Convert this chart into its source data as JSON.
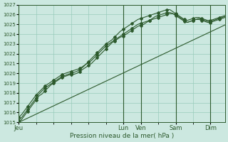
{
  "background_color": "#cce8e0",
  "grid_color": "#99ccbb",
  "line_color": "#2d5a2d",
  "xlabel": "Pression niveau de la mer( hPa )",
  "ylim": [
    1015,
    1027
  ],
  "ytick_step": 1,
  "x_day_labels": [
    "Jeu",
    "Lun",
    "Ven",
    "Sam",
    "Dim"
  ],
  "x_day_positions": [
    0,
    36,
    42,
    54,
    66
  ],
  "total_points": 72,
  "series1": [
    1015.0,
    1015.3,
    1015.7,
    1016.1,
    1016.5,
    1016.9,
    1017.3,
    1017.7,
    1017.9,
    1018.2,
    1018.5,
    1018.8,
    1019.0,
    1019.2,
    1019.4,
    1019.6,
    1019.7,
    1019.8,
    1019.9,
    1019.9,
    1020.0,
    1020.2,
    1020.4,
    1020.6,
    1020.8,
    1021.0,
    1021.3,
    1021.6,
    1021.9,
    1022.2,
    1022.5,
    1022.8,
    1023.1,
    1023.3,
    1023.5,
    1023.7,
    1023.8,
    1024.0,
    1024.2,
    1024.4,
    1024.6,
    1024.8,
    1024.9,
    1025.0,
    1025.2,
    1025.4,
    1025.6,
    1025.8,
    1025.9,
    1026.0,
    1026.1,
    1026.2,
    1026.2,
    1026.1,
    1026.0,
    1025.8,
    1025.6,
    1025.4,
    1025.2,
    1025.3,
    1025.4,
    1025.5,
    1025.5,
    1025.4,
    1025.3,
    1025.2,
    1025.2,
    1025.3,
    1025.4,
    1025.5,
    1025.6,
    1025.7
  ],
  "series2": [
    1015.5,
    1015.8,
    1016.2,
    1016.6,
    1017.0,
    1017.4,
    1017.8,
    1018.1,
    1018.4,
    1018.7,
    1018.9,
    1019.1,
    1019.3,
    1019.5,
    1019.7,
    1019.9,
    1020.0,
    1020.1,
    1020.2,
    1020.3,
    1020.4,
    1020.5,
    1020.7,
    1020.9,
    1021.1,
    1021.3,
    1021.6,
    1021.9,
    1022.2,
    1022.5,
    1022.8,
    1023.0,
    1023.2,
    1023.4,
    1023.6,
    1023.8,
    1024.0,
    1024.2,
    1024.4,
    1024.6,
    1024.8,
    1025.0,
    1025.1,
    1025.2,
    1025.3,
    1025.4,
    1025.5,
    1025.6,
    1025.7,
    1025.8,
    1025.9,
    1026.0,
    1026.1,
    1026.1,
    1025.9,
    1025.7,
    1025.5,
    1025.3,
    1025.2,
    1025.3,
    1025.4,
    1025.5,
    1025.6,
    1025.5,
    1025.4,
    1025.3,
    1025.3,
    1025.4,
    1025.5,
    1025.6,
    1025.7,
    1025.8
  ],
  "series3": [
    1015.2,
    1015.5,
    1015.9,
    1016.3,
    1016.7,
    1017.1,
    1017.5,
    1017.9,
    1018.2,
    1018.5,
    1018.7,
    1018.9,
    1019.1,
    1019.3,
    1019.5,
    1019.7,
    1019.8,
    1019.9,
    1020.0,
    1020.1,
    1020.2,
    1020.4,
    1020.6,
    1020.9,
    1021.2,
    1021.5,
    1021.8,
    1022.1,
    1022.4,
    1022.7,
    1023.0,
    1023.2,
    1023.4,
    1023.7,
    1024.0,
    1024.3,
    1024.5,
    1024.7,
    1024.9,
    1025.1,
    1025.3,
    1025.5,
    1025.6,
    1025.7,
    1025.8,
    1025.9,
    1026.0,
    1026.1,
    1026.2,
    1026.3,
    1026.4,
    1026.5,
    1026.5,
    1026.3,
    1026.1,
    1025.9,
    1025.7,
    1025.5,
    1025.4,
    1025.5,
    1025.6,
    1025.7,
    1025.7,
    1025.6,
    1025.5,
    1025.4,
    1025.4,
    1025.5,
    1025.6,
    1025.7,
    1025.8,
    1025.9
  ],
  "series4_linear": [
    1015.0,
    1015.14,
    1015.28,
    1015.42,
    1015.56,
    1015.7,
    1015.84,
    1015.98,
    1016.12,
    1016.26,
    1016.4,
    1016.54,
    1016.68,
    1016.82,
    1016.96,
    1017.1,
    1017.24,
    1017.38,
    1017.52,
    1017.66,
    1017.8,
    1017.94,
    1018.08,
    1018.22,
    1018.36,
    1018.5,
    1018.64,
    1018.78,
    1018.92,
    1019.06,
    1019.2,
    1019.34,
    1019.48,
    1019.62,
    1019.76,
    1019.9,
    1020.04,
    1020.18,
    1020.32,
    1020.46,
    1020.6,
    1020.74,
    1020.88,
    1021.02,
    1021.16,
    1021.3,
    1021.44,
    1021.58,
    1021.72,
    1021.86,
    1022.0,
    1022.14,
    1022.28,
    1022.42,
    1022.56,
    1022.7,
    1022.84,
    1022.98,
    1023.12,
    1023.26,
    1023.4,
    1023.54,
    1023.68,
    1023.82,
    1023.96,
    1024.1,
    1024.24,
    1024.38,
    1024.52,
    1024.66,
    1024.8,
    1024.94
  ],
  "marker_size": 2.0,
  "marker_every": 3,
  "line_width": 0.8,
  "tick_fontsize": 5.0,
  "xlabel_fontsize": 6.5,
  "xtick_fontsize": 6.0
}
